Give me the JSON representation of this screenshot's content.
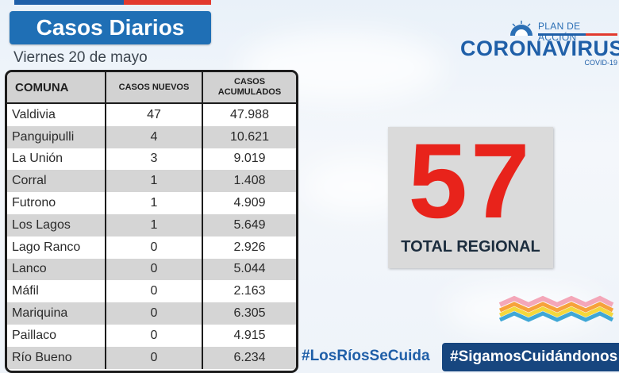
{
  "header": {
    "title": "Casos Diarios",
    "date": "Viernes 20 de mayo"
  },
  "table": {
    "columns": [
      "COMUNA",
      "CASOS NUEVOS",
      "CASOS ACUMULADOS"
    ],
    "rows": [
      {
        "comuna": "Valdivia",
        "nuevos": "47",
        "acumulados": "47.988"
      },
      {
        "comuna": "Panguipulli",
        "nuevos": "4",
        "acumulados": "10.621"
      },
      {
        "comuna": "La Unión",
        "nuevos": "3",
        "acumulados": "9.019"
      },
      {
        "comuna": "Corral",
        "nuevos": "1",
        "acumulados": "1.408"
      },
      {
        "comuna": "Futrono",
        "nuevos": "1",
        "acumulados": "4.909"
      },
      {
        "comuna": "Los Lagos",
        "nuevos": "1",
        "acumulados": "5.649"
      },
      {
        "comuna": "Lago Ranco",
        "nuevos": "0",
        "acumulados": "2.926"
      },
      {
        "comuna": "Lanco",
        "nuevos": "0",
        "acumulados": "5.044"
      },
      {
        "comuna": "Máfil",
        "nuevos": "0",
        "acumulados": "2.163"
      },
      {
        "comuna": "Mariquina",
        "nuevos": "0",
        "acumulados": "6.305"
      },
      {
        "comuna": "Paillaco",
        "nuevos": "0",
        "acumulados": "4.915"
      },
      {
        "comuna": "Río Bueno",
        "nuevos": "0",
        "acumulados": "6.234"
      }
    ]
  },
  "logo": {
    "plan": "PLAN DE ACCIÓN",
    "word": "CORONAVIRUS",
    "covid": "COVID-19",
    "icon": "sun-icon"
  },
  "total": {
    "value": "57",
    "label": "TOTAL REGIONAL"
  },
  "hashtags": {
    "primary": "#LosRíosSeCuida",
    "secondary": "#SigamosCuidándonos"
  },
  "colors": {
    "brand_blue": "#1f6fb5",
    "dark_blue": "#17467f",
    "accent_red": "#e8231b"
  }
}
